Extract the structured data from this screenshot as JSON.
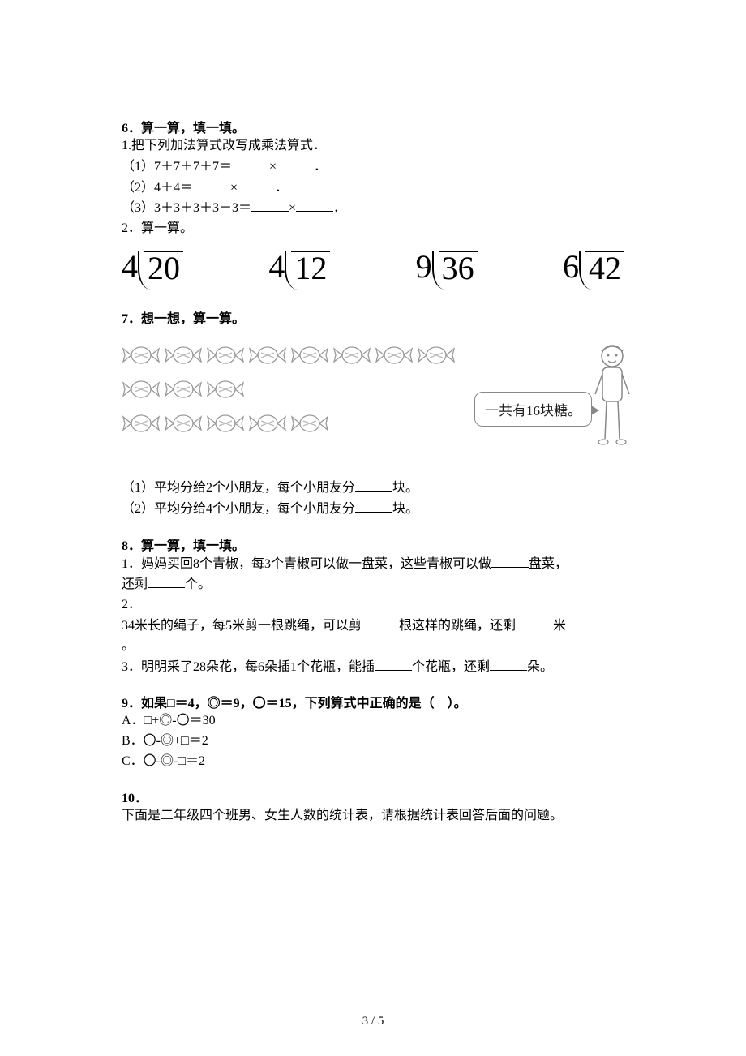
{
  "q6": {
    "title": "6．算一算，填一填。",
    "p1": "1.把下列加法算式改写成乘法算式．",
    "l1a": "（1）7＋7＋7＋7＝",
    "l1b": "×",
    "l1c": "．",
    "l2a": "（2）4＋4＝",
    "l2b": "×",
    "l2c": "．",
    "l3a": "（3）3＋3＋3＋3－3＝",
    "l3b": "×",
    "l3c": "．",
    "p2": "2．算一算。",
    "divs": [
      {
        "divisor": "4",
        "dividend": "20"
      },
      {
        "divisor": "4",
        "dividend": "12"
      },
      {
        "divisor": "9",
        "dividend": "36"
      },
      {
        "divisor": "6",
        "dividend": "42"
      }
    ]
  },
  "q7": {
    "title": "7．想一想，算一算。",
    "speech": "一共有16块糖。",
    "l1a": "（1）平均分给2个小朋友，每个小朋友分",
    "l1b": "块。",
    "l2a": "（2）平均分给4个小朋友，每个小朋友分",
    "l2b": "块。"
  },
  "q8": {
    "title": "8．算一算，填一填。",
    "l1a": "1．妈妈买回8个青椒，每3个青椒可以做一盘菜，这些青椒可以做",
    "l1b": "盘菜，",
    "l1c": "还剩",
    "l1d": "个。",
    "l2a": "2．",
    "l2b": "34米长的绳子，每5米剪一根跳绳，可以剪",
    "l2c": "根这样的跳绳，还剩",
    "l2d": "米",
    "l2e": "。",
    "l3a": "3．明明采了28朵花，每6朵插1个花瓶，能插",
    "l3b": "个花瓶，还剩",
    "l3c": "朵。"
  },
  "q9": {
    "title": "9．如果□＝4，◎＝9，〇＝15，下列算式中正确的是（　）。",
    "a": "A．□+◎-〇＝30",
    "b": "B．〇-◎+□＝2",
    "c": "C．〇-◎-□＝2"
  },
  "q10": {
    "title": "10．",
    "body": "下面是二年级四个班男、女生人数的统计表，请根据统计表回答后面的问题。"
  },
  "footer": "3 / 5"
}
